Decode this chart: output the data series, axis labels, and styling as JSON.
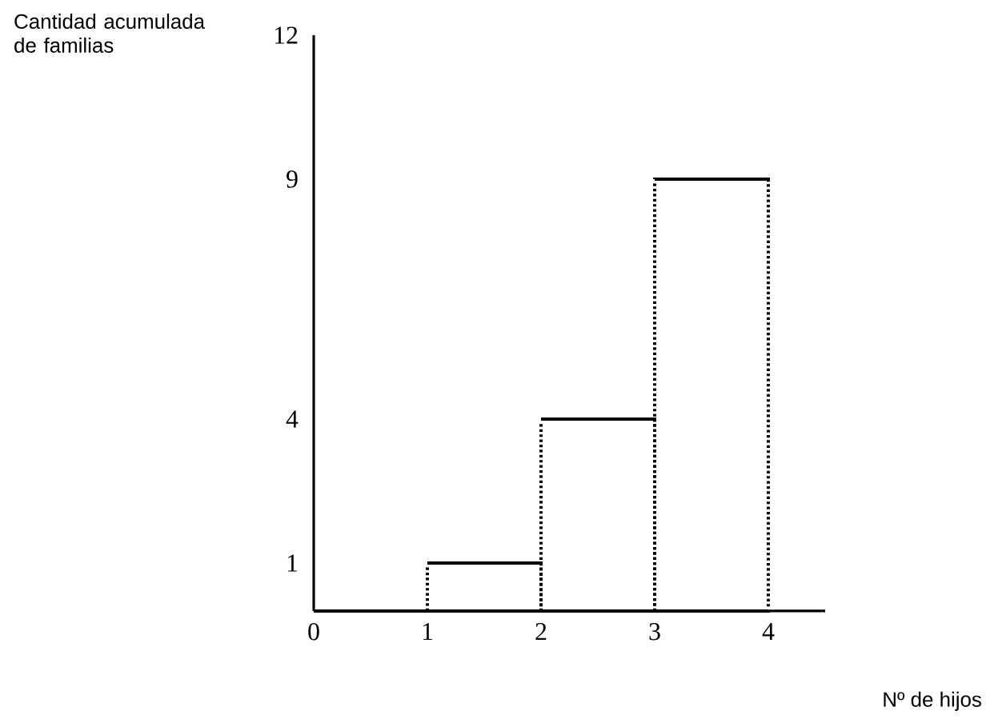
{
  "chart_data": {
    "type": "histogram",
    "xlabel": "Nº de hijos",
    "ylabel": "Cantidad acumulada de familias",
    "bins": [
      0,
      1,
      2,
      3,
      4
    ],
    "values": [
      0,
      1,
      4,
      9
    ],
    "color": "#000000",
    "xlim": [
      0,
      4.5
    ],
    "ylim": [
      0,
      12
    ],
    "xticks": [
      0,
      1,
      2,
      3,
      4
    ],
    "yticks": [
      1,
      4,
      9,
      12
    ],
    "grid": false
  }
}
